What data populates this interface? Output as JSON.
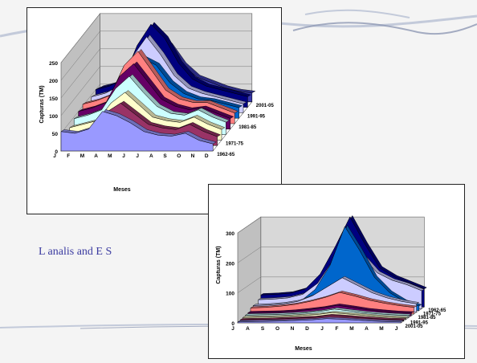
{
  "slide": {
    "caption": "L analis and E S",
    "colors": {
      "background": "#f4f4f4",
      "swoosh": "#b7bfd3",
      "swoosh_dark": "#8f98b4",
      "caption": "#3a3aa0"
    }
  },
  "chart_data": [
    {
      "type": "area",
      "view": "3d-stacked-depth",
      "title": "",
      "xlabel": "Meses",
      "ylabel": "Capturas (TM)",
      "ylim": [
        0,
        250
      ],
      "yticks": [
        0,
        50,
        100,
        150,
        200,
        250
      ],
      "categories": [
        "J",
        "F",
        "M",
        "A",
        "M",
        "J",
        "J",
        "A",
        "S",
        "O",
        "N",
        "D"
      ],
      "depth_labels": [
        "1962-65",
        "1971-75",
        "1981-85",
        "1991-95",
        "2001-05"
      ],
      "series": [
        {
          "name": "1962-65",
          "color": "#9999ff",
          "values": [
            55,
            50,
            62,
            112,
            100,
            80,
            55,
            45,
            42,
            50,
            30,
            20
          ]
        },
        {
          "color": "#993366",
          "values": [
            30,
            35,
            45,
            95,
            120,
            90,
            60,
            50,
            45,
            60,
            40,
            25
          ]
        },
        {
          "color": "#ffffcc",
          "values": [
            35,
            45,
            55,
            105,
            135,
            100,
            65,
            55,
            50,
            65,
            45,
            30
          ]
        },
        {
          "name": "1971-75",
          "color": "#ccffff",
          "values": [
            45,
            55,
            70,
            130,
            165,
            120,
            80,
            60,
            55,
            70,
            50,
            35
          ]
        },
        {
          "color": "#660066",
          "values": [
            50,
            60,
            75,
            150,
            185,
            135,
            85,
            65,
            55,
            60,
            45,
            30
          ]
        },
        {
          "name": "1981-85",
          "color": "#ff8080",
          "values": [
            55,
            65,
            80,
            165,
            205,
            150,
            95,
            70,
            60,
            60,
            45,
            30
          ]
        },
        {
          "color": "#0066cc",
          "values": [
            40,
            50,
            70,
            140,
            170,
            150,
            100,
            70,
            55,
            50,
            40,
            30
          ]
        },
        {
          "name": "1991-95",
          "color": "#ccccff",
          "values": [
            45,
            55,
            75,
            160,
            215,
            165,
            105,
            70,
            55,
            45,
            35,
            25
          ]
        },
        {
          "color": "#000080",
          "values": [
            50,
            60,
            80,
            175,
            235,
            195,
            125,
            80,
            60,
            50,
            40,
            30
          ]
        },
        {
          "name": "2001-05",
          "color": "#3a3ab0",
          "values": [
            40,
            50,
            70,
            130,
            195,
            160,
            105,
            70,
            55,
            40,
            30,
            25
          ]
        }
      ]
    },
    {
      "type": "area",
      "view": "3d-stacked-depth",
      "title": "",
      "xlabel": "Meses",
      "ylabel": "Capturas (TM)",
      "ylim": [
        0,
        300
      ],
      "yticks": [
        0,
        100,
        200,
        300
      ],
      "categories": [
        "J",
        "A",
        "S",
        "O",
        "N",
        "D",
        "J",
        "F",
        "M",
        "A",
        "M",
        "J"
      ],
      "depth_labels": [
        "2001-05",
        "1991-95",
        "1981-85",
        "1971-75",
        "1962-65"
      ],
      "series": [
        {
          "name": "2001-05",
          "color": "#9999ff",
          "values": [
            3,
            4,
            5,
            6,
            8,
            10,
            14,
            12,
            9,
            6,
            4,
            3
          ]
        },
        {
          "color": "#993366",
          "values": [
            4,
            5,
            6,
            8,
            10,
            12,
            18,
            15,
            11,
            8,
            5,
            4
          ]
        },
        {
          "name": "1991-95",
          "color": "#ffffcc",
          "values": [
            6,
            7,
            8,
            10,
            13,
            16,
            22,
            18,
            14,
            10,
            7,
            5
          ]
        },
        {
          "color": "#ccffff",
          "values": [
            8,
            9,
            10,
            12,
            15,
            20,
            28,
            22,
            16,
            12,
            9,
            7
          ]
        },
        {
          "name": "1981-85",
          "color": "#660066",
          "values": [
            10,
            11,
            12,
            15,
            20,
            26,
            35,
            28,
            20,
            15,
            11,
            9
          ]
        },
        {
          "color": "#ff8080",
          "values": [
            20,
            22,
            26,
            32,
            42,
            55,
            72,
            60,
            46,
            36,
            28,
            22
          ]
        },
        {
          "name": "1971-75",
          "color": "#ccccff",
          "values": [
            22,
            24,
            28,
            36,
            55,
            85,
            115,
            90,
            65,
            48,
            36,
            28
          ]
        },
        {
          "color": "#0066cc",
          "values": [
            10,
            12,
            18,
            30,
            70,
            150,
            280,
            200,
            110,
            60,
            30,
            15
          ]
        },
        {
          "name": "1962-65",
          "color": "#ccccff",
          "values": [
            30,
            32,
            36,
            48,
            85,
            160,
            250,
            175,
            120,
            95,
            80,
            60
          ]
        },
        {
          "color": "#000080",
          "values": [
            40,
            42,
            46,
            60,
            110,
            200,
            300,
            210,
            130,
            100,
            80,
            60
          ]
        }
      ]
    }
  ]
}
